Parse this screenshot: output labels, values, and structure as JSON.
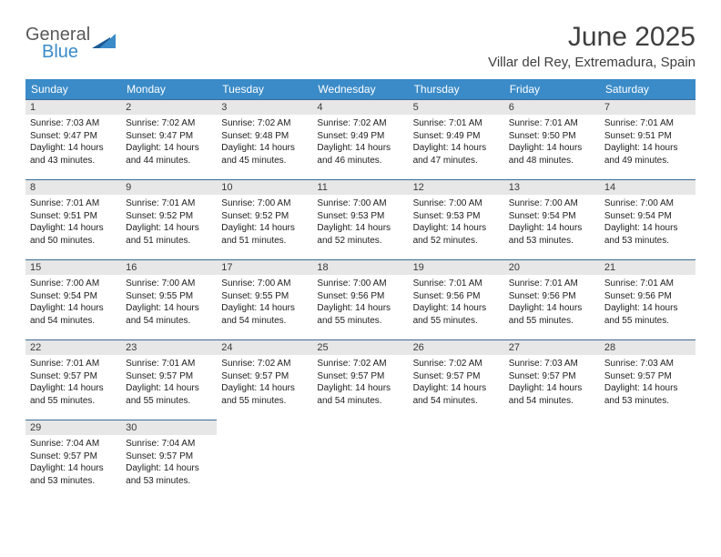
{
  "logo": {
    "general": "General",
    "blue": "Blue"
  },
  "title": "June 2025",
  "location": "Villar del Rey, Extremadura, Spain",
  "colors": {
    "header_bg": "#3a8bc8",
    "header_text": "#ffffff",
    "day_header_bg": "#e7e7e7",
    "day_header_border": "#3a6a94",
    "text": "#212121",
    "logo_gray": "#5a5a5a",
    "logo_blue": "#3a8bc8"
  },
  "day_names": [
    "Sunday",
    "Monday",
    "Tuesday",
    "Wednesday",
    "Thursday",
    "Friday",
    "Saturday"
  ],
  "weeks": [
    [
      {
        "num": "1",
        "sunrise": "Sunrise: 7:03 AM",
        "sunset": "Sunset: 9:47 PM",
        "daylight": "Daylight: 14 hours and 43 minutes."
      },
      {
        "num": "2",
        "sunrise": "Sunrise: 7:02 AM",
        "sunset": "Sunset: 9:47 PM",
        "daylight": "Daylight: 14 hours and 44 minutes."
      },
      {
        "num": "3",
        "sunrise": "Sunrise: 7:02 AM",
        "sunset": "Sunset: 9:48 PM",
        "daylight": "Daylight: 14 hours and 45 minutes."
      },
      {
        "num": "4",
        "sunrise": "Sunrise: 7:02 AM",
        "sunset": "Sunset: 9:49 PM",
        "daylight": "Daylight: 14 hours and 46 minutes."
      },
      {
        "num": "5",
        "sunrise": "Sunrise: 7:01 AM",
        "sunset": "Sunset: 9:49 PM",
        "daylight": "Daylight: 14 hours and 47 minutes."
      },
      {
        "num": "6",
        "sunrise": "Sunrise: 7:01 AM",
        "sunset": "Sunset: 9:50 PM",
        "daylight": "Daylight: 14 hours and 48 minutes."
      },
      {
        "num": "7",
        "sunrise": "Sunrise: 7:01 AM",
        "sunset": "Sunset: 9:51 PM",
        "daylight": "Daylight: 14 hours and 49 minutes."
      }
    ],
    [
      {
        "num": "8",
        "sunrise": "Sunrise: 7:01 AM",
        "sunset": "Sunset: 9:51 PM",
        "daylight": "Daylight: 14 hours and 50 minutes."
      },
      {
        "num": "9",
        "sunrise": "Sunrise: 7:01 AM",
        "sunset": "Sunset: 9:52 PM",
        "daylight": "Daylight: 14 hours and 51 minutes."
      },
      {
        "num": "10",
        "sunrise": "Sunrise: 7:00 AM",
        "sunset": "Sunset: 9:52 PM",
        "daylight": "Daylight: 14 hours and 51 minutes."
      },
      {
        "num": "11",
        "sunrise": "Sunrise: 7:00 AM",
        "sunset": "Sunset: 9:53 PM",
        "daylight": "Daylight: 14 hours and 52 minutes."
      },
      {
        "num": "12",
        "sunrise": "Sunrise: 7:00 AM",
        "sunset": "Sunset: 9:53 PM",
        "daylight": "Daylight: 14 hours and 52 minutes."
      },
      {
        "num": "13",
        "sunrise": "Sunrise: 7:00 AM",
        "sunset": "Sunset: 9:54 PM",
        "daylight": "Daylight: 14 hours and 53 minutes."
      },
      {
        "num": "14",
        "sunrise": "Sunrise: 7:00 AM",
        "sunset": "Sunset: 9:54 PM",
        "daylight": "Daylight: 14 hours and 53 minutes."
      }
    ],
    [
      {
        "num": "15",
        "sunrise": "Sunrise: 7:00 AM",
        "sunset": "Sunset: 9:54 PM",
        "daylight": "Daylight: 14 hours and 54 minutes."
      },
      {
        "num": "16",
        "sunrise": "Sunrise: 7:00 AM",
        "sunset": "Sunset: 9:55 PM",
        "daylight": "Daylight: 14 hours and 54 minutes."
      },
      {
        "num": "17",
        "sunrise": "Sunrise: 7:00 AM",
        "sunset": "Sunset: 9:55 PM",
        "daylight": "Daylight: 14 hours and 54 minutes."
      },
      {
        "num": "18",
        "sunrise": "Sunrise: 7:00 AM",
        "sunset": "Sunset: 9:56 PM",
        "daylight": "Daylight: 14 hours and 55 minutes."
      },
      {
        "num": "19",
        "sunrise": "Sunrise: 7:01 AM",
        "sunset": "Sunset: 9:56 PM",
        "daylight": "Daylight: 14 hours and 55 minutes."
      },
      {
        "num": "20",
        "sunrise": "Sunrise: 7:01 AM",
        "sunset": "Sunset: 9:56 PM",
        "daylight": "Daylight: 14 hours and 55 minutes."
      },
      {
        "num": "21",
        "sunrise": "Sunrise: 7:01 AM",
        "sunset": "Sunset: 9:56 PM",
        "daylight": "Daylight: 14 hours and 55 minutes."
      }
    ],
    [
      {
        "num": "22",
        "sunrise": "Sunrise: 7:01 AM",
        "sunset": "Sunset: 9:57 PM",
        "daylight": "Daylight: 14 hours and 55 minutes."
      },
      {
        "num": "23",
        "sunrise": "Sunrise: 7:01 AM",
        "sunset": "Sunset: 9:57 PM",
        "daylight": "Daylight: 14 hours and 55 minutes."
      },
      {
        "num": "24",
        "sunrise": "Sunrise: 7:02 AM",
        "sunset": "Sunset: 9:57 PM",
        "daylight": "Daylight: 14 hours and 55 minutes."
      },
      {
        "num": "25",
        "sunrise": "Sunrise: 7:02 AM",
        "sunset": "Sunset: 9:57 PM",
        "daylight": "Daylight: 14 hours and 54 minutes."
      },
      {
        "num": "26",
        "sunrise": "Sunrise: 7:02 AM",
        "sunset": "Sunset: 9:57 PM",
        "daylight": "Daylight: 14 hours and 54 minutes."
      },
      {
        "num": "27",
        "sunrise": "Sunrise: 7:03 AM",
        "sunset": "Sunset: 9:57 PM",
        "daylight": "Daylight: 14 hours and 54 minutes."
      },
      {
        "num": "28",
        "sunrise": "Sunrise: 7:03 AM",
        "sunset": "Sunset: 9:57 PM",
        "daylight": "Daylight: 14 hours and 53 minutes."
      }
    ],
    [
      {
        "num": "29",
        "sunrise": "Sunrise: 7:04 AM",
        "sunset": "Sunset: 9:57 PM",
        "daylight": "Daylight: 14 hours and 53 minutes."
      },
      {
        "num": "30",
        "sunrise": "Sunrise: 7:04 AM",
        "sunset": "Sunset: 9:57 PM",
        "daylight": "Daylight: 14 hours and 53 minutes."
      },
      null,
      null,
      null,
      null,
      null
    ]
  ]
}
